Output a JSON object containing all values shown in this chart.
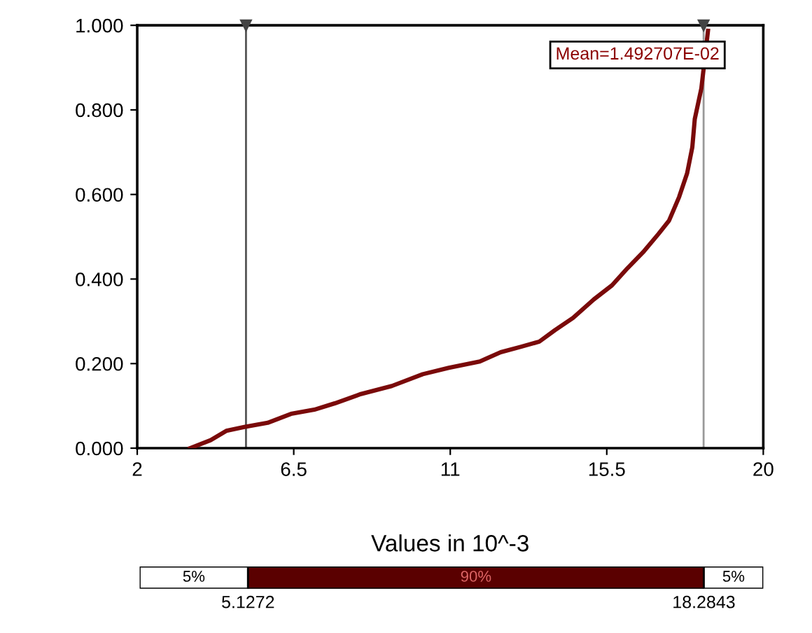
{
  "chart_data": {
    "type": "line",
    "xlabel": "Values in 10^-3",
    "series": [
      {
        "color": "#7a0a0a",
        "x": [
          3.52,
          4.11,
          4.56,
          5.08,
          5.75,
          6.42,
          7.09,
          7.68,
          8.43,
          9.32,
          10.21,
          10.96,
          11.85,
          12.45,
          13.04,
          13.56,
          14.01,
          14.53,
          15.13,
          15.65,
          16.1,
          16.54,
          16.99,
          17.29,
          17.58,
          17.81,
          17.96,
          18.03,
          18.22,
          18.41
        ],
        "values": [
          0,
          0.019,
          0.041,
          0.05,
          0.06,
          0.081,
          0.091,
          0.106,
          0.128,
          0.147,
          0.175,
          0.19,
          0.205,
          0.227,
          0.24,
          0.252,
          0.279,
          0.308,
          0.352,
          0.385,
          0.426,
          0.463,
          0.507,
          0.538,
          0.594,
          0.65,
          0.712,
          0.778,
          0.851,
          0.987
        ]
      }
    ],
    "xlim": [
      2,
      20
    ],
    "xticks": [
      2,
      6.5,
      11,
      15.5,
      20
    ],
    "ylim": [
      0,
      1
    ],
    "yticks": [
      {
        "value": 0,
        "label": "0.000"
      },
      {
        "value": 0.2,
        "label": "0.200"
      },
      {
        "value": 0.4,
        "label": "0.400"
      },
      {
        "value": 0.6,
        "label": "0.600"
      },
      {
        "value": 0.8,
        "label": "0.800"
      },
      {
        "value": 1,
        "label": "1.000"
      }
    ],
    "ref_lines": [
      {
        "axis": "x",
        "value": 5.1272,
        "color": "#555555"
      },
      {
        "axis": "x",
        "value": 18.2843,
        "color": "#999999"
      }
    ],
    "annotations": [
      "Mean=1.492707E-02",
      "5%",
      "90%",
      "5%",
      "5.1272",
      "18.2843"
    ],
    "grid": false,
    "marker": "none",
    "line_style": "solid"
  }
}
